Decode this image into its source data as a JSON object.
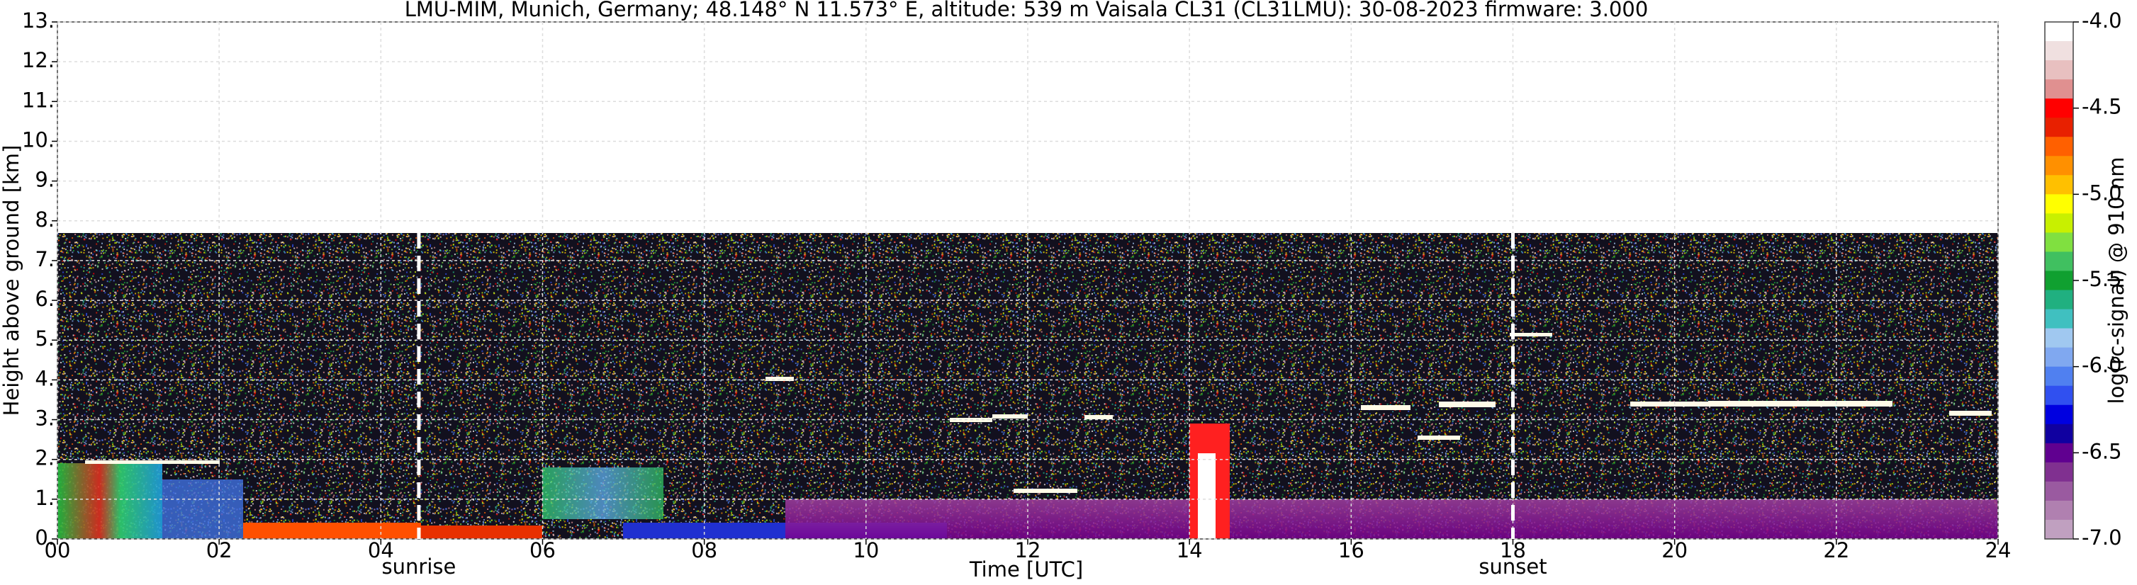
{
  "chart_data": {
    "type": "heatmap",
    "title": "LMU-MIM, Munich, Germany; 48.148° N 11.573° E, altitude: 539 m    Vaisala CL31 (CL31LMU): 30-08-2023    firmware: 3.000",
    "x_label": "Time [UTC]",
    "y_label": "Height above ground [km]",
    "xlim": [
      0,
      24
    ],
    "xticks": [
      {
        "value": 0,
        "label": "00"
      },
      {
        "value": 2,
        "label": "02"
      },
      {
        "value": 4,
        "label": "04"
      },
      {
        "value": 6,
        "label": "06"
      },
      {
        "value": 8,
        "label": "08"
      },
      10,
      12,
      14,
      16,
      18,
      20,
      22,
      24
    ],
    "ylim": [
      0,
      13
    ],
    "yticks": [
      {
        "value": 0,
        "label": "0."
      },
      {
        "value": 1,
        "label": "1."
      },
      {
        "value": 2,
        "label": "2."
      },
      {
        "value": 3,
        "label": "3."
      },
      {
        "value": 4,
        "label": "4."
      },
      {
        "value": 5,
        "label": "5."
      },
      {
        "value": 6,
        "label": "6."
      },
      {
        "value": 7,
        "label": "7."
      },
      {
        "value": 8,
        "label": "8."
      },
      {
        "value": 9,
        "label": "9."
      },
      {
        "value": 10,
        "label": "10."
      },
      {
        "value": 11,
        "label": "11."
      },
      {
        "value": 12,
        "label": "12."
      },
      {
        "value": 13,
        "label": "13."
      }
    ],
    "grid": true,
    "annotations": [
      {
        "text": "sunrise",
        "x": 4.47
      },
      {
        "text": "sunset",
        "x": 18.0
      }
    ],
    "colorbar": {
      "label": "log(rc-signal) @ 910 nm",
      "lim": [
        -7.0,
        -4.0
      ],
      "ticks": [
        {
          "value": -4.0,
          "label": "-4.0"
        },
        -4.5,
        {
          "value": -5.0,
          "label": "-5.0"
        },
        -5.5,
        {
          "value": -6.0,
          "label": "-6.0"
        },
        -6.5,
        {
          "value": -7.0,
          "label": "-7.0"
        }
      ],
      "colors": [
        "#ffffff",
        "#f0e0e0",
        "#e8c0c0",
        "#e09090",
        "#ff0000",
        "#e82000",
        "#ff6000",
        "#ff9000",
        "#ffc000",
        "#ffff00",
        "#c8f000",
        "#80e040",
        "#40c060",
        "#10a030",
        "#20b080",
        "#40c0c0",
        "#a0c8f0",
        "#80a8f0",
        "#5080f0",
        "#3050f0",
        "#0000e0",
        "#1000a0",
        "#600090",
        "#803090",
        "#9a5aa0",
        "#b080b0",
        "#c0a0c0"
      ]
    }
  }
}
